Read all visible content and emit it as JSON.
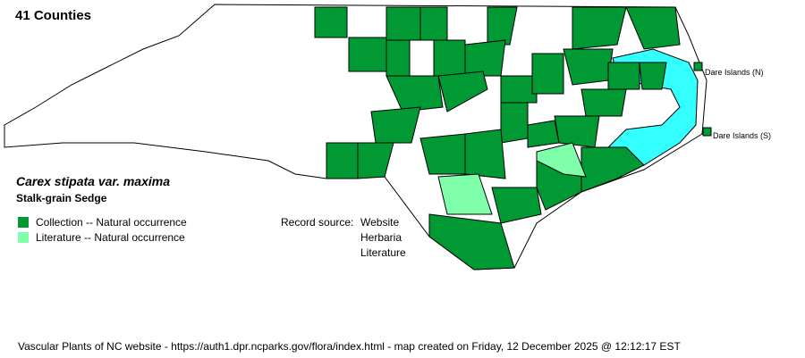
{
  "header": {
    "county_count": "41 Counties"
  },
  "species": {
    "scientific_name": "Carex stipata var. maxima",
    "common_name": "Stalk-grain Sedge"
  },
  "legend": [
    {
      "label": "Collection -- Natural occurrence",
      "color": "#009933"
    },
    {
      "label": "Literature -- Natural occurrence",
      "color": "#80FFAA"
    }
  ],
  "record_source": {
    "label": "Record source:",
    "sources": [
      "Website",
      "Herbaria",
      "Literature"
    ]
  },
  "map": {
    "water_color": "#33FFFF",
    "absent_color": "#FFFFFF",
    "island_labels": [
      "Dare Islands (N)",
      "Dare Islands (S)"
    ]
  },
  "footer": "Vascular Plants of NC website - https://auth1.dpr.ncparks.gov/flora/index.html - map created on Friday, 12 December 2025 @ 12:12:17 EST"
}
